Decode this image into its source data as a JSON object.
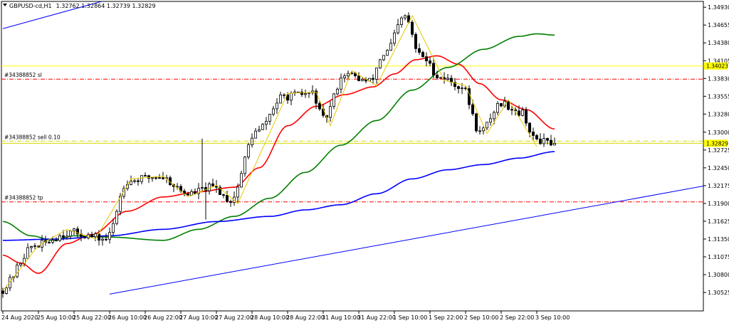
{
  "header": {
    "menu_arrow_icon": "triangle-down-icon",
    "symbol": "GBPUSD-cd,H1",
    "ohlc": "1.32762 1.32864 1.32739 1.32829"
  },
  "chart_data": {
    "type": "candlestick",
    "symbol": "GBPUSD-cd",
    "timeframe": "H1",
    "ylim": [
      1.3024,
      1.3502
    ],
    "y_ticks": [
      "1.34930",
      "1.34655",
      "1.34380",
      "1.34105",
      "1.33830",
      "1.33555",
      "1.33280",
      "1.33000",
      "1.32725",
      "1.32450",
      "1.32175",
      "1.31900",
      "1.31625",
      "1.31350",
      "1.31075",
      "1.30800",
      "1.30525"
    ],
    "x_ticks": [
      "24 Aug 2020",
      "25 Aug 10:00",
      "25 Aug 22:00",
      "26 Aug 10:00",
      "26 Aug 22:00",
      "27 Aug 10:00",
      "27 Aug 22:00",
      "28 Aug 10:00",
      "28 Aug 22:00",
      "31 Aug 10:00",
      "31 Aug 22:00",
      "1 Sep 10:00",
      "1 Sep 22:00",
      "2 Sep 10:00",
      "2 Sep 22:00",
      "3 Sep 10:00"
    ],
    "x_tick_bar_index": [
      0,
      10,
      20,
      30,
      40,
      50,
      60,
      70,
      80,
      90,
      100,
      110,
      120,
      130,
      140,
      150
    ],
    "bar_count": 156,
    "path_anchors": [
      [
        0,
        1.3055
      ],
      [
        10,
        1.3125
      ],
      [
        20,
        1.3145
      ],
      [
        30,
        1.3135
      ],
      [
        36,
        1.3225
      ],
      [
        45,
        1.3232
      ],
      [
        53,
        1.3205
      ],
      [
        60,
        1.3215
      ],
      [
        65,
        1.3195
      ],
      [
        72,
        1.33
      ],
      [
        80,
        1.3355
      ],
      [
        88,
        1.336
      ],
      [
        91,
        1.332
      ],
      [
        97,
        1.339
      ],
      [
        104,
        1.3378
      ],
      [
        108,
        1.342
      ],
      [
        114,
        1.3478
      ],
      [
        118,
        1.342
      ],
      [
        124,
        1.3385
      ],
      [
        130,
        1.337
      ],
      [
        135,
        1.33
      ],
      [
        141,
        1.3345
      ],
      [
        147,
        1.333
      ],
      [
        150,
        1.329
      ],
      [
        155,
        1.32829
      ]
    ],
    "moving_averages": [
      {
        "color": "#ff0000",
        "points": [
          [
            0,
            1.311
          ],
          [
            5,
            1.3098
          ],
          [
            10,
            1.3082
          ],
          [
            18,
            1.3128
          ],
          [
            25,
            1.3142
          ],
          [
            35,
            1.3178
          ],
          [
            45,
            1.32
          ],
          [
            55,
            1.3208
          ],
          [
            65,
            1.3215
          ],
          [
            72,
            1.3245
          ],
          [
            80,
            1.331
          ],
          [
            88,
            1.334
          ],
          [
            96,
            1.3358
          ],
          [
            104,
            1.337
          ],
          [
            110,
            1.339
          ],
          [
            116,
            1.3412
          ],
          [
            122,
            1.3418
          ],
          [
            128,
            1.3405
          ],
          [
            134,
            1.3375
          ],
          [
            140,
            1.335
          ],
          [
            147,
            1.3335
          ],
          [
            155,
            1.3305
          ]
        ]
      },
      {
        "color": "#008000",
        "points": [
          [
            0,
            1.3162
          ],
          [
            8,
            1.314
          ],
          [
            14,
            1.3133
          ],
          [
            20,
            1.314
          ],
          [
            30,
            1.3138
          ],
          [
            45,
            1.3133
          ],
          [
            55,
            1.315
          ],
          [
            65,
            1.317
          ],
          [
            75,
            1.3198
          ],
          [
            85,
            1.3238
          ],
          [
            95,
            1.328
          ],
          [
            105,
            1.3318
          ],
          [
            115,
            1.3365
          ],
          [
            125,
            1.34
          ],
          [
            135,
            1.3428
          ],
          [
            145,
            1.3448
          ],
          [
            150,
            1.3452
          ],
          [
            155,
            1.345
          ]
        ]
      },
      {
        "color": "#0000ff",
        "points": [
          [
            0,
            1.3133
          ],
          [
            15,
            1.3135
          ],
          [
            30,
            1.314
          ],
          [
            45,
            1.315
          ],
          [
            60,
            1.3162
          ],
          [
            75,
            1.317
          ],
          [
            85,
            1.318
          ],
          [
            95,
            1.3188
          ],
          [
            105,
            1.3205
          ],
          [
            115,
            1.3228
          ],
          [
            125,
            1.3242
          ],
          [
            135,
            1.325
          ],
          [
            145,
            1.326
          ],
          [
            155,
            1.327
          ]
        ]
      }
    ],
    "channel_lines": {
      "color": "#0000ff",
      "upper": [
        [
          0,
          1.346
        ],
        [
          78,
          1.3578
        ]
      ],
      "lower": [
        [
          30,
          1.305
        ],
        [
          200,
          1.322
        ]
      ]
    },
    "horizontal_lines": [
      {
        "price": 1.34023,
        "color": "#ffff00",
        "style": "solid",
        "label": ""
      },
      {
        "price": 1.3382,
        "color": "#ff0000",
        "style": "dashdot",
        "label": "#34388852 sl"
      },
      {
        "price": 1.32862,
        "color": "#d6d600",
        "style": "dashdot",
        "label": "#34388852 sell 0.10"
      },
      {
        "price": 1.32829,
        "color": "#d6d600",
        "style": "solid",
        "label": ""
      },
      {
        "price": 1.31924,
        "color": "#ff0000",
        "style": "dashdot",
        "label": "#34388852 tp"
      }
    ],
    "price_tags": [
      {
        "price": 1.34023,
        "text": "1.34023",
        "color": "#ffff00"
      },
      {
        "price": 1.32829,
        "text": "1.32829",
        "color": "#ffff00"
      }
    ],
    "zigzag": {
      "color": "#e6c800",
      "points": [
        [
          0,
          1.3055
        ],
        [
          10,
          1.3125
        ],
        [
          18,
          1.315
        ],
        [
          26,
          1.3135
        ],
        [
          36,
          1.3228
        ],
        [
          45,
          1.3232
        ],
        [
          52,
          1.32
        ],
        [
          60,
          1.3218
        ],
        [
          66,
          1.319
        ],
        [
          80,
          1.336
        ],
        [
          88,
          1.3362
        ],
        [
          92,
          1.331
        ],
        [
          98,
          1.3395
        ],
        [
          105,
          1.3372
        ],
        [
          115,
          1.348
        ],
        [
          124,
          1.338
        ],
        [
          130,
          1.3372
        ],
        [
          136,
          1.3298
        ],
        [
          142,
          1.335
        ],
        [
          150,
          1.3278
        ]
      ]
    }
  }
}
